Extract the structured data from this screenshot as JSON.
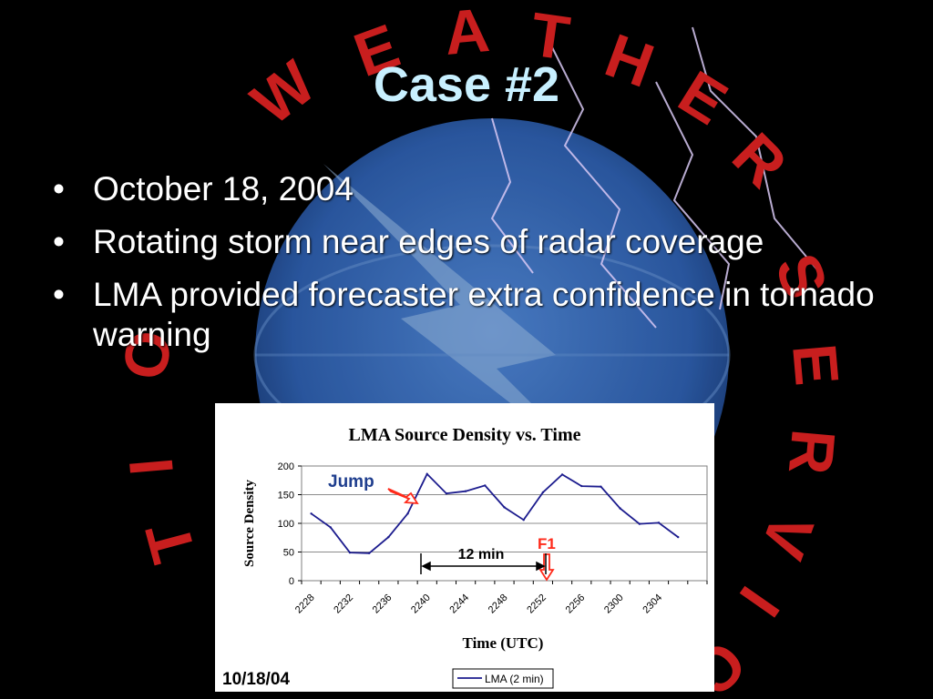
{
  "slide": {
    "title": "Case #2",
    "bullets": [
      "October 18, 2004",
      "Rotating storm near edges of radar coverage",
      "LMA provided forecaster extra confidence in tornado warning"
    ],
    "background_text": "WEATHER SERVICE · NATIONAL"
  },
  "colors": {
    "title": "#c8f0ff",
    "bullet_text": "#ffffff",
    "series_line": "#1c1c8e",
    "jump_text": "#1f3e8e",
    "f1_text": "#ff2a1a",
    "arrow_red": "#ff2a1a",
    "background_letters": "#c81e1e",
    "globe": "#3a6fc0"
  },
  "chart_data": {
    "type": "line",
    "title": "LMA Source Density vs. Time",
    "xlabel": "Time (UTC)",
    "ylabel": "Source Density",
    "ylim": [
      0,
      200
    ],
    "yticks": [
      0,
      50,
      100,
      150,
      200
    ],
    "x": [
      "2228",
      "2230",
      "2232",
      "2234",
      "2236",
      "2238",
      "2240",
      "2242",
      "2244",
      "2246",
      "2248",
      "2250",
      "2252",
      "2254",
      "2256",
      "2258",
      "2300",
      "2302",
      "2304",
      "2306",
      "2308"
    ],
    "xtick_labels": [
      "2228",
      "2232",
      "2236",
      "2240",
      "2244",
      "2248",
      "2252",
      "2256",
      "2300",
      "2304"
    ],
    "series": [
      {
        "name": "LMA (2 min)",
        "values": [
          117,
          93,
          49,
          48,
          76,
          117,
          186,
          152,
          156,
          166,
          128,
          106,
          154,
          185,
          165,
          164,
          126,
          99,
          101,
          76,
          null
        ]
      }
    ],
    "grid": true,
    "legend": "bottom-center",
    "annotations": {
      "jump": "Jump",
      "f1": "F1",
      "interval": "12 min",
      "date_stamp": "10/18/04"
    }
  }
}
